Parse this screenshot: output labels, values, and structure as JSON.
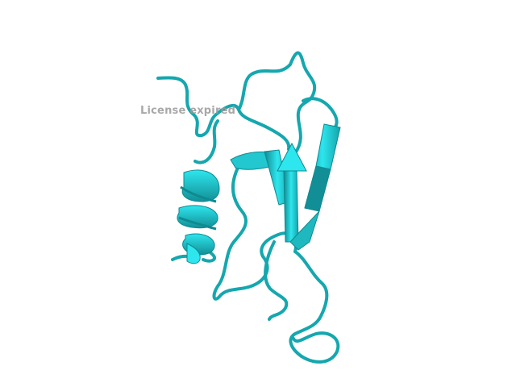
{
  "viewer": {
    "watermark_text": "License expired",
    "subject": "protein-cartoon",
    "colors": {
      "background": "#ffffff",
      "ribbon": "#1fb8bf",
      "ribbon_dark": "#0f8a91",
      "ribbon_light": "#2ee6ee",
      "watermark": "#9a9a9a"
    }
  }
}
